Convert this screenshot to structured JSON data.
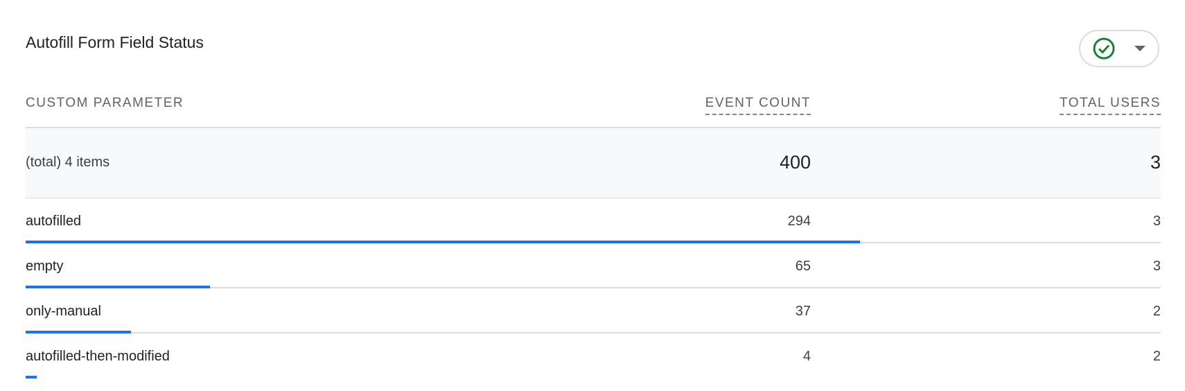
{
  "card": {
    "title": "Autofill Form Field Status",
    "status_icon": "check-circle-icon",
    "status_color": "#188038",
    "dropdown_icon": "caret-down-icon"
  },
  "table": {
    "headers": [
      "CUSTOM PARAMETER",
      "EVENT COUNT",
      "TOTAL USERS"
    ],
    "total": {
      "label": "(total) 4 items",
      "event_count": "400",
      "total_users": "3"
    },
    "bar_color": "#1a73e8",
    "rows": [
      {
        "name": "autofilled",
        "event_count": "294",
        "total_users": "3",
        "share": 0.735
      },
      {
        "name": "empty",
        "event_count": "65",
        "total_users": "3",
        "share": 0.1625
      },
      {
        "name": "only-manual",
        "event_count": "37",
        "total_users": "2",
        "share": 0.0925
      },
      {
        "name": "autofilled-then-modified",
        "event_count": "4",
        "total_users": "2",
        "share": 0.01
      }
    ]
  }
}
